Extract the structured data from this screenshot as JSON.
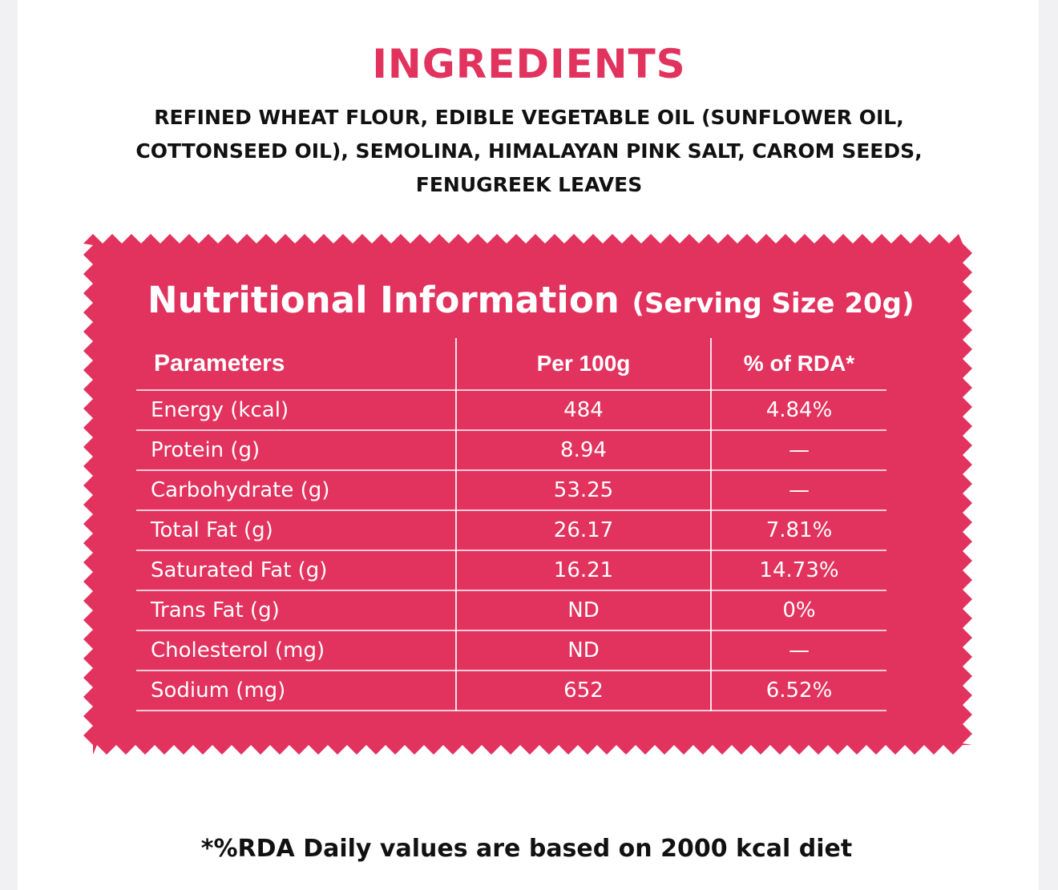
{
  "colors": {
    "accent": "#e2325e",
    "panel": "#e2325e",
    "text_dark": "#111111",
    "text_light": "#ffffff",
    "background": "#ffffff"
  },
  "ingredients": {
    "title": "INGREDIENTS",
    "text": "REFINED WHEAT FLOUR, EDIBLE VEGETABLE OIL (SUNFLOWER OIL, COTTONSEED OIL), SEMOLINA, HIMALAYAN PINK SALT, CAROM SEEDS, FENUGREEK LEAVES"
  },
  "nutrition": {
    "title": "Nutritional Information",
    "serving": "(Serving Size 20g)",
    "headers": {
      "parameter": "Parameters",
      "per100g": "Per 100g",
      "rda": "% of RDA*"
    },
    "rows": [
      {
        "parameter": "Energy (kcal)",
        "per100g": "484",
        "rda": "4.84%"
      },
      {
        "parameter": "Protein (g)",
        "per100g": "8.94",
        "rda": "—"
      },
      {
        "parameter": "Carbohydrate (g)",
        "per100g": "53.25",
        "rda": "—"
      },
      {
        "parameter": "Total Fat (g)",
        "per100g": "26.17",
        "rda": "7.81%"
      },
      {
        "parameter": "Saturated Fat (g)",
        "per100g": "16.21",
        "rda": "14.73%"
      },
      {
        "parameter": "Trans Fat (g)",
        "per100g": "ND",
        "rda": "0%"
      },
      {
        "parameter": "Cholesterol (mg)",
        "per100g": "ND",
        "rda": "—"
      },
      {
        "parameter": "Sodium (mg)",
        "per100g": "652",
        "rda": "6.52%"
      }
    ]
  },
  "footnote": "*%RDA Daily values are based on 2000 kcal diet"
}
